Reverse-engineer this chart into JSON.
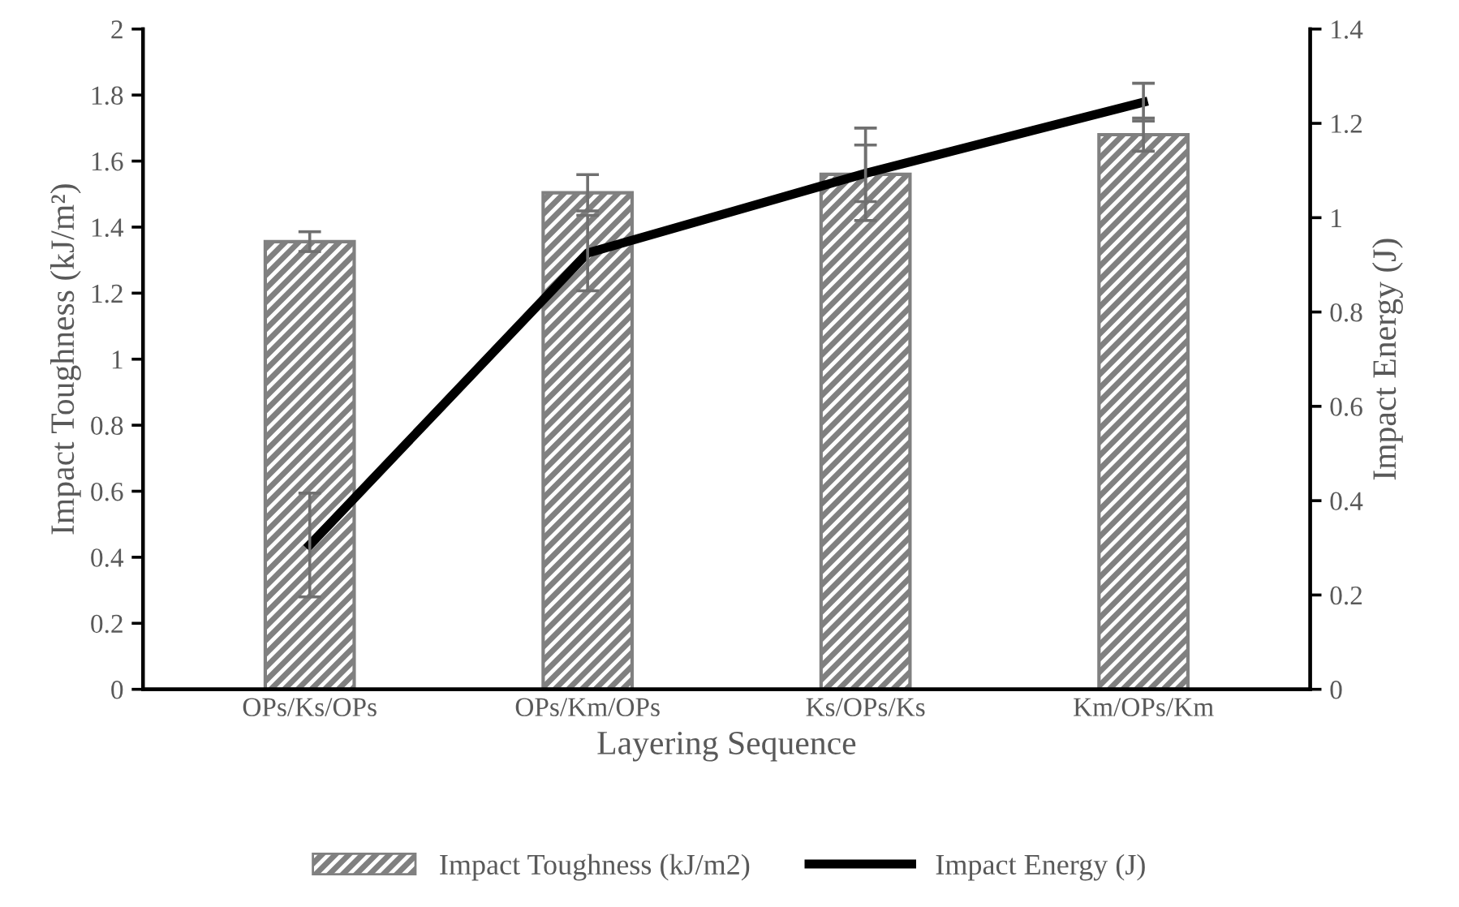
{
  "chart_data": {
    "type": "bar",
    "xlabel": "Layering Sequence",
    "ylabel": "Impact Toughness (kJ/m²)",
    "y2label": "Impact Energy (J)",
    "categories": [
      "OPs/Ks/OPs",
      "OPs/Km/OPs",
      "Ks/OPs/Ks",
      "Km/OPs/Km"
    ],
    "series": [
      {
        "name": "Impact Toughness (kJ/m2)",
        "color": "#808080",
        "values": [
          1.356,
          1.504,
          1.56,
          1.68
        ],
        "errors": [
          0.03,
          0.055,
          0.14,
          0.05
        ]
      },
      {
        "name": "Impact Energy (J)",
        "type": "line",
        "axis": "y2",
        "color": "#000000",
        "values": [
          0.306,
          0.925,
          1.094,
          1.245
        ],
        "errors": [
          0.11,
          0.08,
          0.06,
          0.04
        ]
      }
    ],
    "ylim": [
      0,
      2
    ],
    "yticks": [
      0,
      0.2,
      0.4,
      0.6,
      0.8,
      1,
      1.2,
      1.4,
      1.6,
      1.8,
      2
    ],
    "y2lim": [
      0,
      1.4
    ],
    "y2ticks": [
      0,
      0.2,
      0.4,
      0.6,
      0.8,
      1,
      1.2,
      1.4
    ],
    "legend": "bottom",
    "grid": false,
    "marker": "none",
    "line_style": "solid"
  }
}
